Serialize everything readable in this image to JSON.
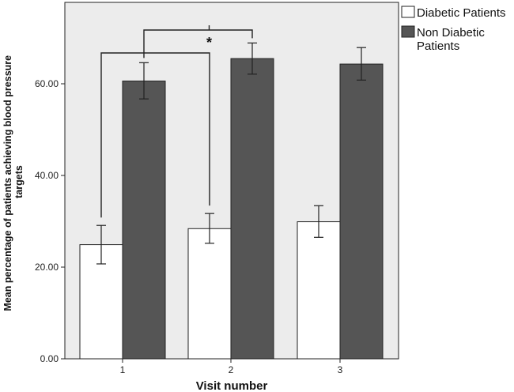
{
  "chart_data": {
    "type": "bar",
    "title": "",
    "xlabel": "Visit number",
    "ylabel_lines": [
      "Mean percentage of patients achieving blood pressure",
      "targets"
    ],
    "categories": [
      "1",
      "2",
      "3"
    ],
    "ylim": [
      0,
      75
    ],
    "yticks": [
      "0.00",
      "20.00",
      "40.00",
      "60.00"
    ],
    "ytick_values": [
      0,
      20,
      40,
      60
    ],
    "grid": false,
    "legend_position": "top-right outside",
    "series": [
      {
        "name": "Diabetic Patients",
        "color": "#ffffff",
        "values": [
          24.9,
          28.4,
          29.9
        ],
        "err_low": [
          20.7,
          25.2,
          26.5
        ],
        "err_high": [
          29.1,
          31.7,
          33.4
        ]
      },
      {
        "name": "Non Diabetic Patients",
        "legend_lines": [
          "Non Diabetic",
          "Patients"
        ],
        "color": "#555555",
        "values": [
          60.6,
          65.5,
          64.3
        ],
        "err_low": [
          56.7,
          62.1,
          60.8
        ],
        "err_high": [
          64.6,
          68.9,
          67.9
        ]
      }
    ],
    "annotations": [
      {
        "type": "bracket",
        "from": "Diabetic Patients@1",
        "to": "Diabetic Patients@2",
        "label": ""
      },
      {
        "type": "bracket",
        "from": "Non Diabetic Patients@1",
        "to": "Non Diabetic Patients@2",
        "label": "*"
      }
    ],
    "plot_background": "#ececec"
  }
}
